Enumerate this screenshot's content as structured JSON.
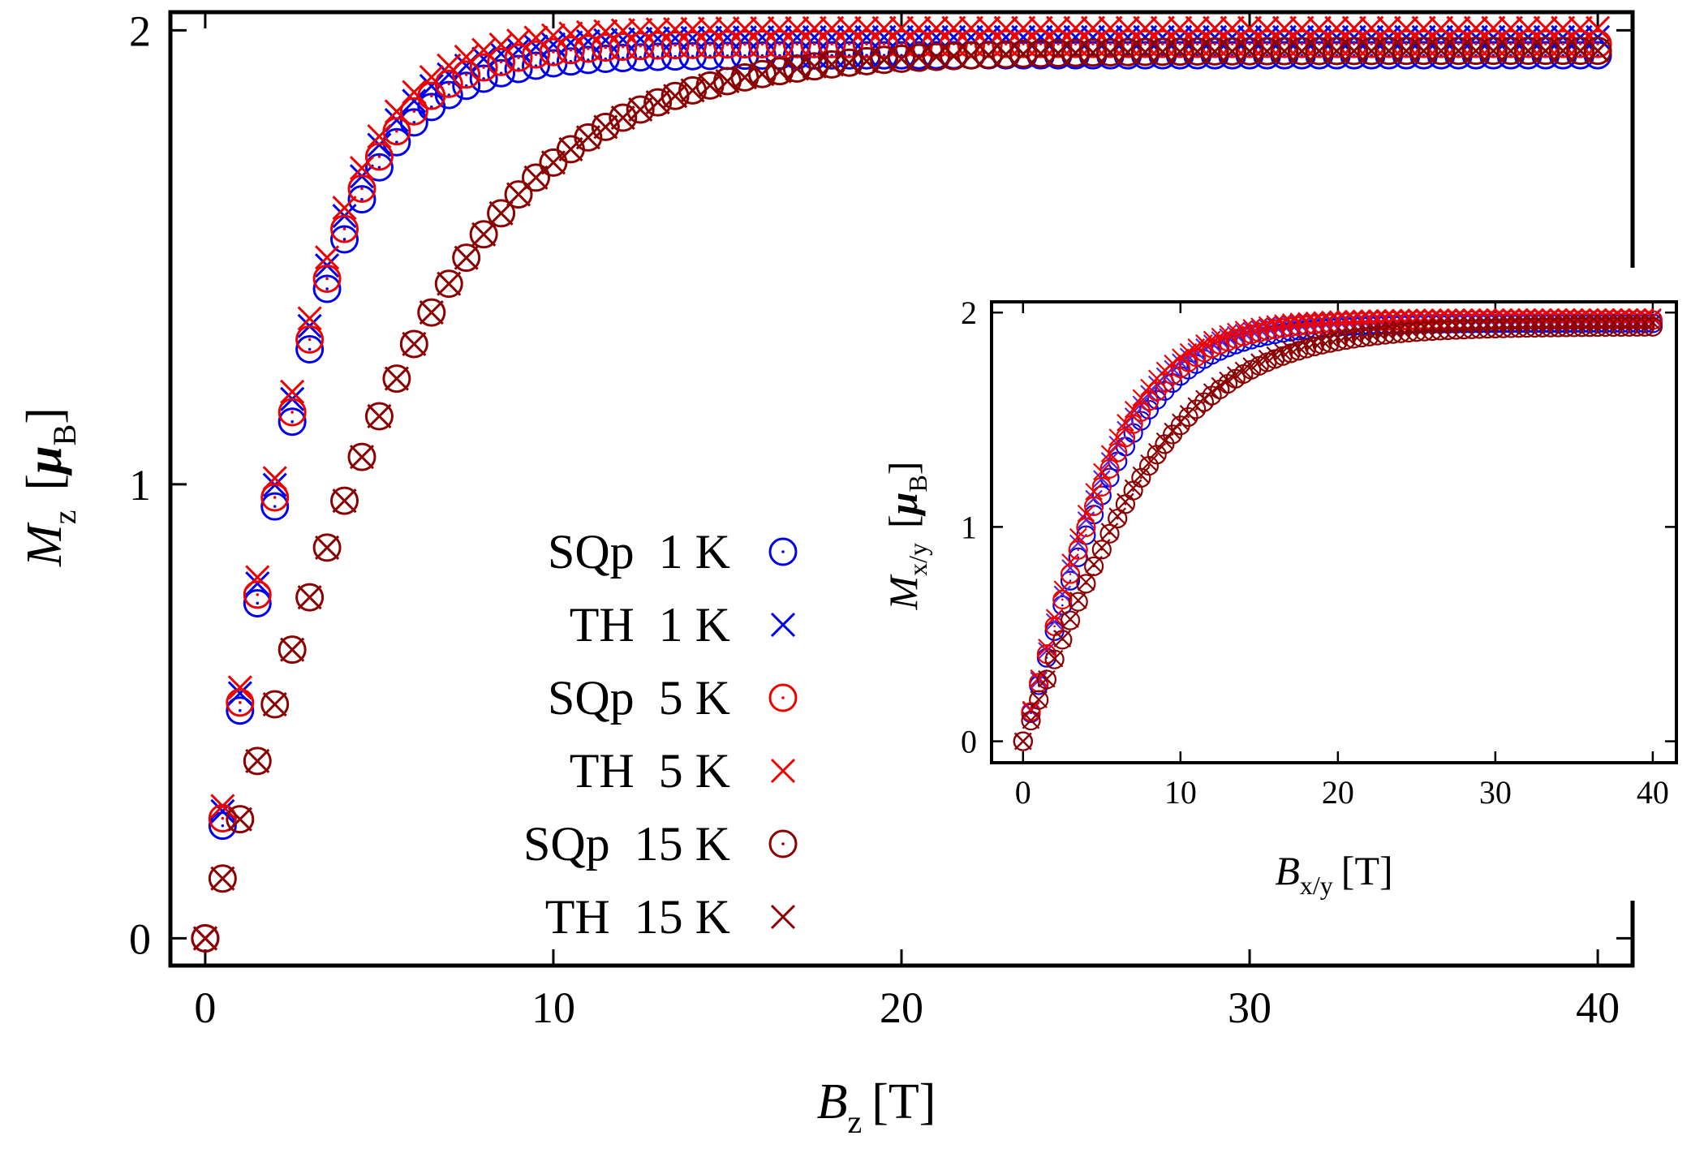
{
  "chart_data": [
    {
      "id": "main",
      "type": "scatter",
      "xlabel": {
        "symbol": "B",
        "sub": "z",
        "unit": "[T]"
      },
      "ylabel": {
        "symbol": "M",
        "sub": "z",
        "unit_open": "[",
        "unit_symbol": "μ",
        "unit_sub": "B",
        "unit_close": "]"
      },
      "xlim": [
        -1,
        41
      ],
      "ylim": [
        -0.06,
        2.04
      ],
      "xticks": [
        0,
        10,
        20,
        30,
        40
      ],
      "yticks": [
        0,
        1,
        2
      ],
      "grid": false,
      "legend_position": "center",
      "x": [
        0,
        0.5,
        1,
        1.5,
        2,
        2.5,
        3,
        3.5,
        4,
        4.5,
        5,
        5.5,
        6,
        6.5,
        7,
        7.5,
        8,
        8.5,
        9,
        9.5,
        10,
        10.5,
        11,
        11.5,
        12,
        12.5,
        13,
        13.5,
        14,
        14.5,
        15,
        15.5,
        16,
        16.5,
        17,
        17.5,
        18,
        18.5,
        19,
        19.5,
        20,
        20.5,
        21,
        21.5,
        22,
        22.5,
        23,
        23.5,
        24,
        24.5,
        25,
        25.5,
        26,
        26.5,
        27,
        27.5,
        28,
        28.5,
        29,
        29.5,
        30,
        30.5,
        31,
        31.5,
        32,
        32.5,
        33,
        33.5,
        34,
        34.5,
        35,
        35.5,
        36,
        36.5,
        37,
        37.5,
        38,
        38.5,
        39,
        39.5,
        40
      ],
      "series": [
        {
          "name": "SQp  1 K",
          "temp": "1 K",
          "marker": "circle",
          "color": "#0000ee",
          "Msat": 1.96,
          "slope": 0.27,
          "dx": 0,
          "dy": -0.015
        },
        {
          "name": "TH  1 K",
          "temp": "1 K",
          "marker": "cross",
          "color": "#0000ee",
          "Msat": 1.975,
          "slope": 0.275,
          "dx": 0,
          "dy": 0.01
        },
        {
          "name": "SQp  5 K",
          "temp": "5 K",
          "marker": "circle",
          "color": "#ee0000",
          "Msat": 1.97,
          "slope": 0.27,
          "dx": 0,
          "dy": 0
        },
        {
          "name": "TH  5 K",
          "temp": "5 K",
          "marker": "cross",
          "color": "#ee0000",
          "Msat": 1.985,
          "slope": 0.275,
          "dx": 0,
          "dy": 0.02
        },
        {
          "name": "SQp  15 K",
          "temp": "15 K",
          "marker": "circle",
          "color": "#8b0000",
          "Msat": 1.955,
          "slope": 0.135,
          "dx": 0,
          "dy": 0
        },
        {
          "name": "TH  15 K",
          "temp": "15 K",
          "marker": "cross",
          "color": "#8b0000",
          "Msat": 1.955,
          "slope": 0.135,
          "dx": 0,
          "dy": 0
        }
      ]
    },
    {
      "id": "inset",
      "type": "scatter",
      "xlabel": {
        "symbol": "B",
        "sub": "x/y",
        "unit": "[T]"
      },
      "ylabel": {
        "symbol": "M",
        "sub": "x/y",
        "unit_open": "[",
        "unit_symbol": "μ",
        "unit_sub": "B",
        "unit_close": "]"
      },
      "xlim": [
        -2,
        41.5
      ],
      "ylim": [
        -0.1,
        2.05
      ],
      "xticks": [
        0,
        10,
        20,
        30,
        40
      ],
      "yticks": [
        0,
        1,
        2
      ],
      "grid": false,
      "x": [
        0,
        0.5,
        1,
        1.5,
        2,
        2.5,
        3,
        3.5,
        4,
        4.5,
        5,
        5.5,
        6,
        6.5,
        7,
        7.5,
        8,
        8.5,
        9,
        9.5,
        10,
        10.5,
        11,
        11.5,
        12,
        12.5,
        13,
        13.5,
        14,
        14.5,
        15,
        15.5,
        16,
        16.5,
        17,
        17.5,
        18,
        18.5,
        19,
        19.5,
        20,
        20.5,
        21,
        21.5,
        22,
        22.5,
        23,
        23.5,
        24,
        24.5,
        25,
        25.5,
        26,
        26.5,
        27,
        27.5,
        28,
        28.5,
        29,
        29.5,
        30,
        30.5,
        31,
        31.5,
        32,
        32.5,
        33,
        33.5,
        34,
        34.5,
        35,
        35.5,
        36,
        36.5,
        37,
        37.5,
        38,
        38.5,
        39,
        39.5,
        40
      ],
      "series": [
        {
          "name": "SQp  1 K",
          "marker": "circle",
          "color": "#0000ee",
          "Msat": 1.95,
          "slope": 0.135
        },
        {
          "name": "TH  1 K",
          "marker": "cross",
          "color": "#5a2ad6",
          "Msat": 1.975,
          "slope": 0.145
        },
        {
          "name": "SQp  5 K",
          "marker": "circle",
          "color": "#ee0000",
          "Msat": 1.965,
          "slope": 0.14
        },
        {
          "name": "TH  5 K",
          "marker": "cross",
          "color": "#ee0000",
          "Msat": 1.98,
          "slope": 0.15
        },
        {
          "name": "SQp  15 K",
          "marker": "circle",
          "color": "#8b0000",
          "Msat": 1.935,
          "slope": 0.1
        },
        {
          "name": "TH  15 K",
          "marker": "cross",
          "color": "#8b0000",
          "Msat": 1.955,
          "slope": 0.1
        }
      ]
    }
  ]
}
